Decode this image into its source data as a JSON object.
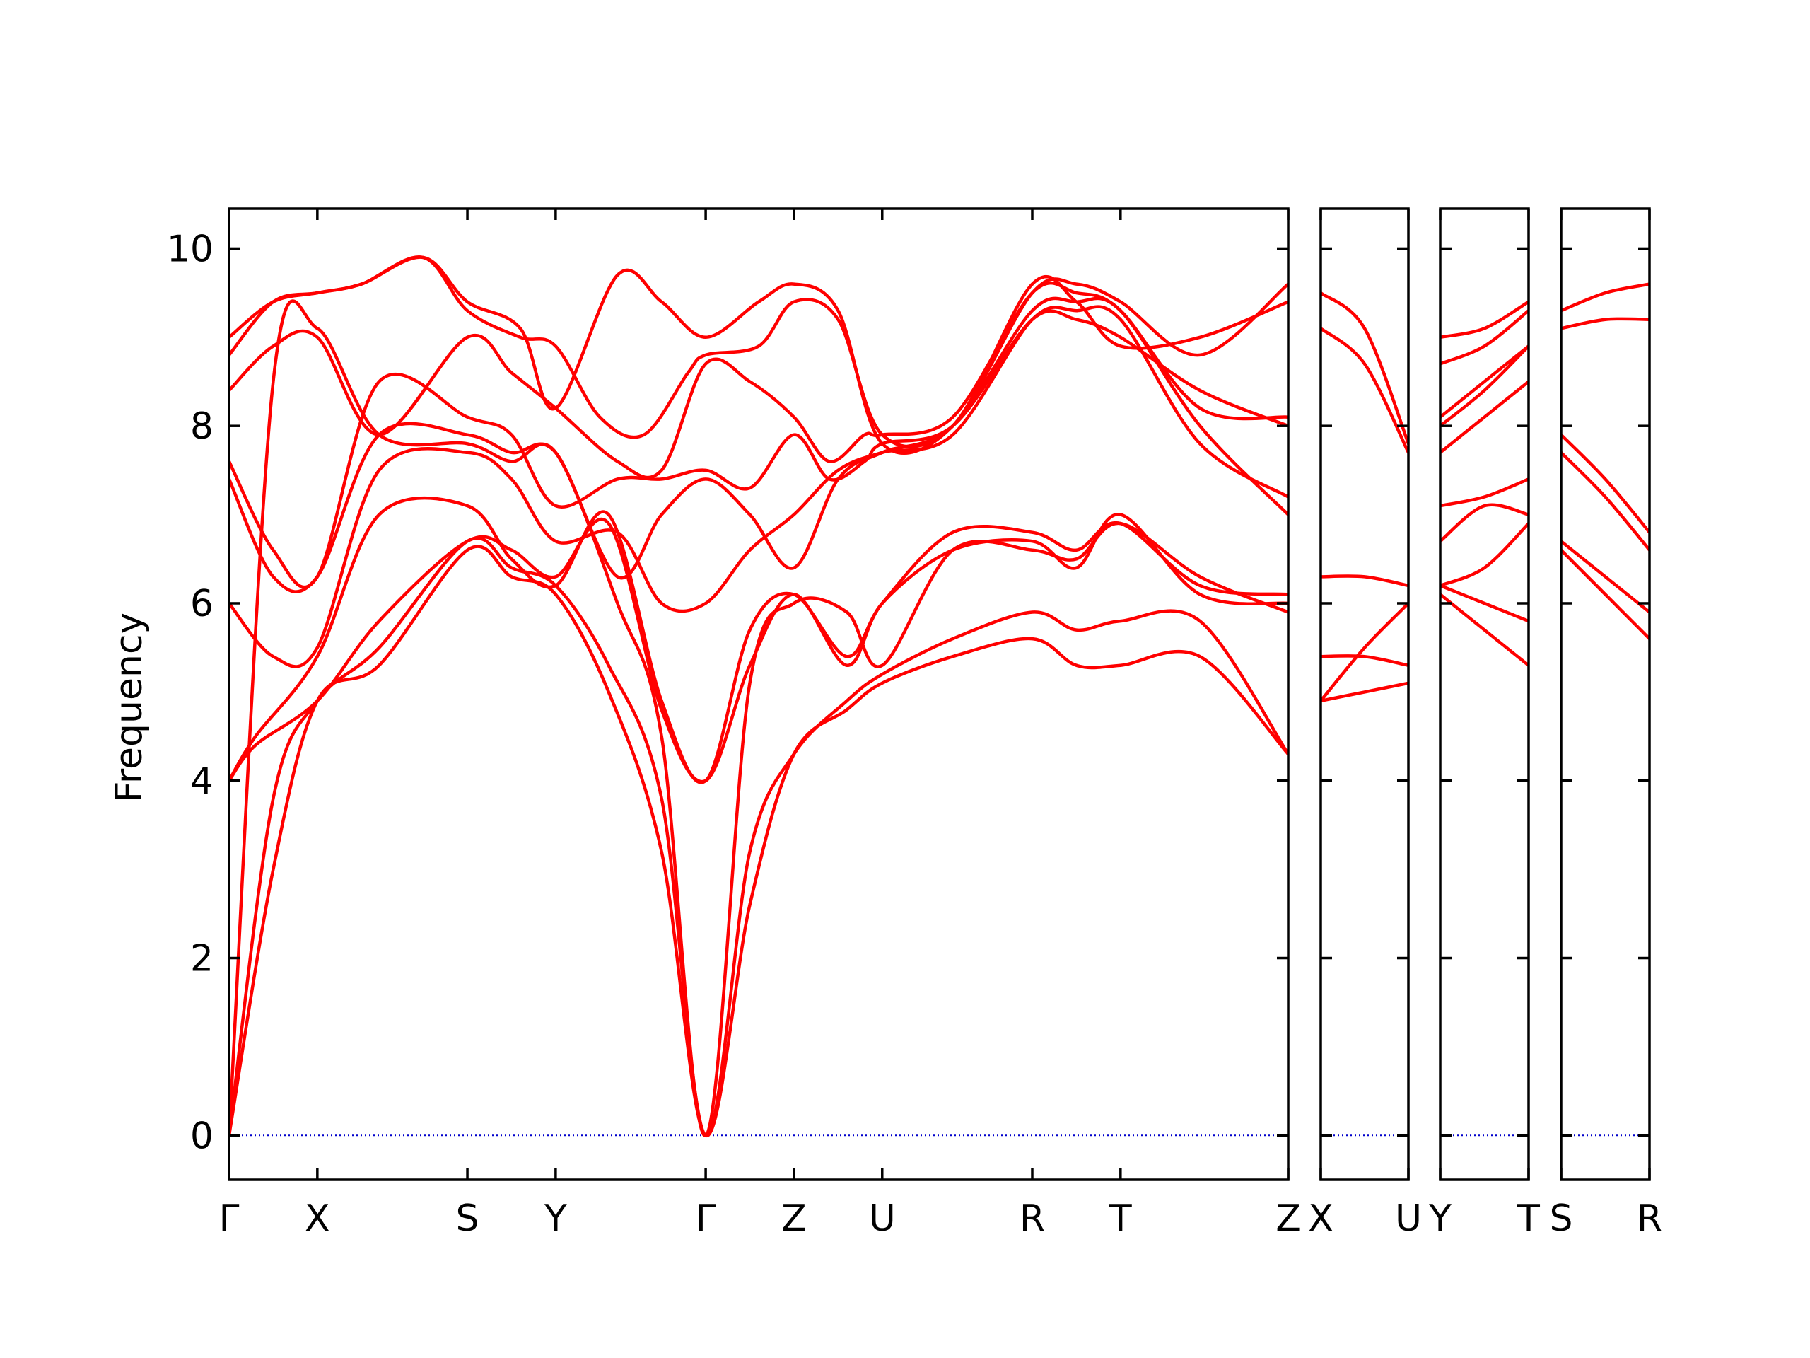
{
  "chart_data": {
    "type": "line",
    "title": "",
    "ylabel": "Frequency",
    "ylim": [
      -0.5,
      10.45
    ],
    "yticks": [
      0,
      2,
      4,
      6,
      8,
      10
    ],
    "grid": false,
    "legend": "none",
    "colors": {
      "bands": "#ff0000",
      "zero_line": "#0000cc",
      "axes": "#000000"
    },
    "panels": [
      {
        "name": "Γ-X-S-Y-Γ-Z-U-R-T-Z",
        "xlim": [
          0,
          12
        ],
        "x_ticks": [
          {
            "x": 0,
            "label": "Γ"
          },
          {
            "x": 1,
            "label": "X"
          },
          {
            "x": 2.7,
            "label": "S"
          },
          {
            "x": 3.7,
            "label": "Y"
          },
          {
            "x": 5.4,
            "label": "Γ"
          },
          {
            "x": 6.4,
            "label": "Z"
          },
          {
            "x": 7.4,
            "label": "U"
          },
          {
            "x": 9.1,
            "label": "R"
          },
          {
            "x": 10.1,
            "label": "T"
          },
          {
            "x": 12,
            "label": "Z"
          }
        ],
        "bands": [
          {
            "x": [
              0,
              0.5,
              1,
              1.7,
              2.7,
              3.2,
              3.7,
              4.3,
              4.9,
              5.4,
              5.9,
              6.4,
              7,
              7.4,
              8.2,
              9.1,
              9.6,
              10.1,
              11,
              12
            ],
            "y": [
              0,
              3.0,
              4.9,
              5.3,
              6.6,
              6.3,
              6.1,
              5.0,
              3.2,
              0,
              2.6,
              4.3,
              4.8,
              5.1,
              5.4,
              5.6,
              5.3,
              5.3,
              5.4,
              4.3
            ]
          },
          {
            "x": [
              0,
              0.5,
              1,
              1.7,
              2.7,
              3.2,
              3.7,
              4.3,
              4.9,
              5.4,
              5.9,
              6.4,
              7,
              7.4,
              8.2,
              9.1,
              9.6,
              10.1,
              11,
              12
            ],
            "y": [
              0,
              3.8,
              4.9,
              5.5,
              6.7,
              6.4,
              6.2,
              5.3,
              3.8,
              0,
              3.2,
              4.3,
              4.9,
              5.2,
              5.6,
              5.9,
              5.7,
              5.8,
              5.8,
              4.3
            ]
          },
          {
            "x": [
              0,
              0.5,
              1,
              1.7,
              2.7,
              3.2,
              3.7,
              4.4,
              4.9,
              5.4,
              5.9,
              6.4,
              7,
              7.4,
              8.2,
              9.1,
              9.6,
              10.1,
              11,
              12
            ],
            "y": [
              0,
              8.5,
              9.1,
              7.9,
              7.8,
              7.6,
              7.7,
              6.0,
              4.5,
              0,
              5.1,
              6.0,
              5.9,
              5.3,
              6.6,
              6.6,
              6.5,
              6.9,
              6.3,
              5.9
            ]
          },
          {
            "x": [
              0,
              0.3,
              1,
              1.7,
              2.7,
              3.2,
              3.7,
              4.3,
              4.9,
              5.4,
              5.9,
              6.4,
              7,
              7.4,
              8.2,
              9.1,
              9.6,
              10.1,
              11,
              12
            ],
            "y": [
              4.0,
              4.4,
              4.9,
              5.8,
              6.7,
              6.6,
              6.3,
              6.9,
              4.8,
              4.0,
              5.3,
              6.1,
              5.3,
              6.0,
              6.6,
              6.7,
              6.4,
              7.0,
              6.1,
              6.0
            ]
          },
          {
            "x": [
              0,
              0.3,
              1,
              1.7,
              2.7,
              3.2,
              3.7,
              4.3,
              4.9,
              5.4,
              5.9,
              6.4,
              7,
              7.4,
              8.2,
              9.1,
              9.6,
              10.1,
              11,
              12
            ],
            "y": [
              4.0,
              4.5,
              5.4,
              7.0,
              7.1,
              6.5,
              6.2,
              7.0,
              4.9,
              4.0,
              5.7,
              6.1,
              5.4,
              6.0,
              6.8,
              6.8,
              6.6,
              6.9,
              6.2,
              6.1
            ]
          },
          {
            "x": [
              0,
              0.5,
              1,
              1.7,
              2.7,
              3.2,
              3.7,
              4.4,
              4.9,
              5.4,
              5.9,
              6.4,
              6.9,
              7.4,
              8.2,
              9.1,
              9.6,
              10.1,
              11,
              12
            ],
            "y": [
              6.0,
              5.4,
              5.5,
              7.5,
              7.7,
              7.4,
              6.7,
              6.8,
              6.0,
              6.0,
              6.6,
              7.0,
              7.5,
              7.7,
              7.9,
              9.2,
              9.3,
              9.2,
              7.8,
              7.2
            ]
          },
          {
            "x": [
              0,
              0.5,
              1,
              1.7,
              2.7,
              3.2,
              3.7,
              4.4,
              4.9,
              5.4,
              5.9,
              6.4,
              6.9,
              7.4,
              8.2,
              9.1,
              9.6,
              10.1,
              11,
              12
            ],
            "y": [
              7.4,
              6.3,
              6.3,
              7.9,
              7.9,
              7.7,
              7.7,
              6.3,
              7.0,
              7.4,
              7.0,
              6.4,
              7.4,
              7.7,
              8.0,
              9.3,
              9.4,
              9.3,
              8.0,
              7.0
            ]
          },
          {
            "x": [
              0,
              0.5,
              1,
              1.7,
              2.7,
              3.2,
              3.7,
              4.4,
              4.9,
              5.4,
              5.9,
              6.4,
              6.8,
              7.2,
              7.4,
              8.2,
              9.1,
              9.6,
              10.1,
              11,
              12
            ],
            "y": [
              7.6,
              6.6,
              6.3,
              8.5,
              8.1,
              7.9,
              7.1,
              7.4,
              7.4,
              7.5,
              7.3,
              7.9,
              7.4,
              7.6,
              7.8,
              8.0,
              9.2,
              9.2,
              9.0,
              8.4,
              8.0
            ]
          },
          {
            "x": [
              0,
              0.5,
              1,
              1.7,
              2.7,
              3.2,
              3.7,
              4.4,
              4.9,
              5.4,
              5.9,
              6.4,
              6.8,
              7.2,
              7.4,
              8.2,
              9.1,
              9.6,
              10.1,
              11,
              12
            ],
            "y": [
              8.4,
              8.9,
              9.0,
              7.9,
              9.0,
              8.6,
              8.2,
              7.6,
              7.5,
              8.7,
              8.5,
              8.1,
              7.6,
              7.9,
              7.9,
              8.1,
              9.5,
              9.5,
              9.3,
              8.2,
              8.1
            ]
          },
          {
            "x": [
              0,
              0.5,
              1,
              1.5,
              2.2,
              2.7,
              3.3,
              3.7,
              4.2,
              4.7,
              5.2,
              5.4,
              6,
              6.4,
              6.9,
              7.4,
              8.2,
              9.1,
              9.6,
              10.1,
              11,
              12
            ],
            "y": [
              8.8,
              9.4,
              9.5,
              9.6,
              9.9,
              9.3,
              9.0,
              8.9,
              8.1,
              7.9,
              8.6,
              8.8,
              8.9,
              9.4,
              9.2,
              7.9,
              8.0,
              9.6,
              9.4,
              8.9,
              9.0,
              9.4
            ]
          },
          {
            "x": [
              0,
              0.5,
              1,
              1.5,
              2.2,
              2.7,
              3.3,
              3.7,
              4.4,
              4.9,
              5.4,
              6,
              6.4,
              6.9,
              7.4,
              8.2,
              9.1,
              9.6,
              10.1,
              11,
              12
            ],
            "y": [
              9.0,
              9.4,
              9.5,
              9.6,
              9.9,
              9.4,
              9.1,
              8.2,
              9.7,
              9.4,
              9.0,
              9.4,
              9.6,
              9.3,
              7.8,
              8.0,
              9.5,
              9.6,
              9.4,
              8.8,
              9.6
            ]
          }
        ]
      },
      {
        "name": "X-U",
        "xlim": [
          0,
          1
        ],
        "x_ticks": [
          {
            "x": 0,
            "label": "X"
          },
          {
            "x": 1,
            "label": "U"
          }
        ],
        "bands": [
          {
            "x": [
              0,
              0.5,
              1
            ],
            "y": [
              4.9,
              5.0,
              5.1
            ]
          },
          {
            "x": [
              0,
              0.5,
              1
            ],
            "y": [
              4.9,
              5.5,
              6.0
            ]
          },
          {
            "x": [
              0,
              0.5,
              1
            ],
            "y": [
              5.4,
              5.4,
              5.3
            ]
          },
          {
            "x": [
              0,
              0.5,
              1
            ],
            "y": [
              6.3,
              6.3,
              6.2
            ]
          },
          {
            "x": [
              0,
              0.5,
              1
            ],
            "y": [
              9.1,
              8.7,
              7.7
            ]
          },
          {
            "x": [
              0,
              0.5,
              1
            ],
            "y": [
              9.5,
              9.1,
              7.8
            ]
          }
        ]
      },
      {
        "name": "Y-T",
        "xlim": [
          0,
          1
        ],
        "x_ticks": [
          {
            "x": 0,
            "label": "Y"
          },
          {
            "x": 1,
            "label": "T"
          }
        ],
        "bands": [
          {
            "x": [
              0,
              0.5,
              1
            ],
            "y": [
              6.1,
              5.7,
              5.3
            ]
          },
          {
            "x": [
              0,
              0.5,
              1
            ],
            "y": [
              6.2,
              6.0,
              5.8
            ]
          },
          {
            "x": [
              0,
              0.5,
              1
            ],
            "y": [
              6.2,
              6.4,
              6.9
            ]
          },
          {
            "x": [
              0,
              0.5,
              1
            ],
            "y": [
              6.7,
              7.1,
              7.0
            ]
          },
          {
            "x": [
              0,
              0.5,
              1
            ],
            "y": [
              7.1,
              7.2,
              7.4
            ]
          },
          {
            "x": [
              0,
              0.5,
              1
            ],
            "y": [
              7.7,
              8.1,
              8.5
            ]
          },
          {
            "x": [
              0,
              0.5,
              1
            ],
            "y": [
              8.0,
              8.4,
              8.9
            ]
          },
          {
            "x": [
              0,
              0.5,
              1
            ],
            "y": [
              8.1,
              8.5,
              8.9
            ]
          },
          {
            "x": [
              0,
              0.5,
              1
            ],
            "y": [
              8.7,
              8.9,
              9.3
            ]
          },
          {
            "x": [
              0,
              0.5,
              1
            ],
            "y": [
              9.0,
              9.1,
              9.4
            ]
          }
        ]
      },
      {
        "name": "S-R",
        "xlim": [
          0,
          1
        ],
        "x_ticks": [
          {
            "x": 0,
            "label": "S"
          },
          {
            "x": 1,
            "label": "R"
          }
        ],
        "bands": [
          {
            "x": [
              0,
              0.5,
              1
            ],
            "y": [
              6.6,
              6.1,
              5.6
            ]
          },
          {
            "x": [
              0,
              0.5,
              1
            ],
            "y": [
              6.7,
              6.3,
              5.9
            ]
          },
          {
            "x": [
              0,
              0.5,
              1
            ],
            "y": [
              7.7,
              7.2,
              6.6
            ]
          },
          {
            "x": [
              0,
              0.5,
              1
            ],
            "y": [
              7.9,
              7.4,
              6.8
            ]
          },
          {
            "x": [
              0,
              0.5,
              1
            ],
            "y": [
              9.1,
              9.2,
              9.2
            ]
          },
          {
            "x": [
              0,
              0.5,
              1
            ],
            "y": [
              9.3,
              9.5,
              9.6
            ]
          }
        ]
      }
    ]
  }
}
